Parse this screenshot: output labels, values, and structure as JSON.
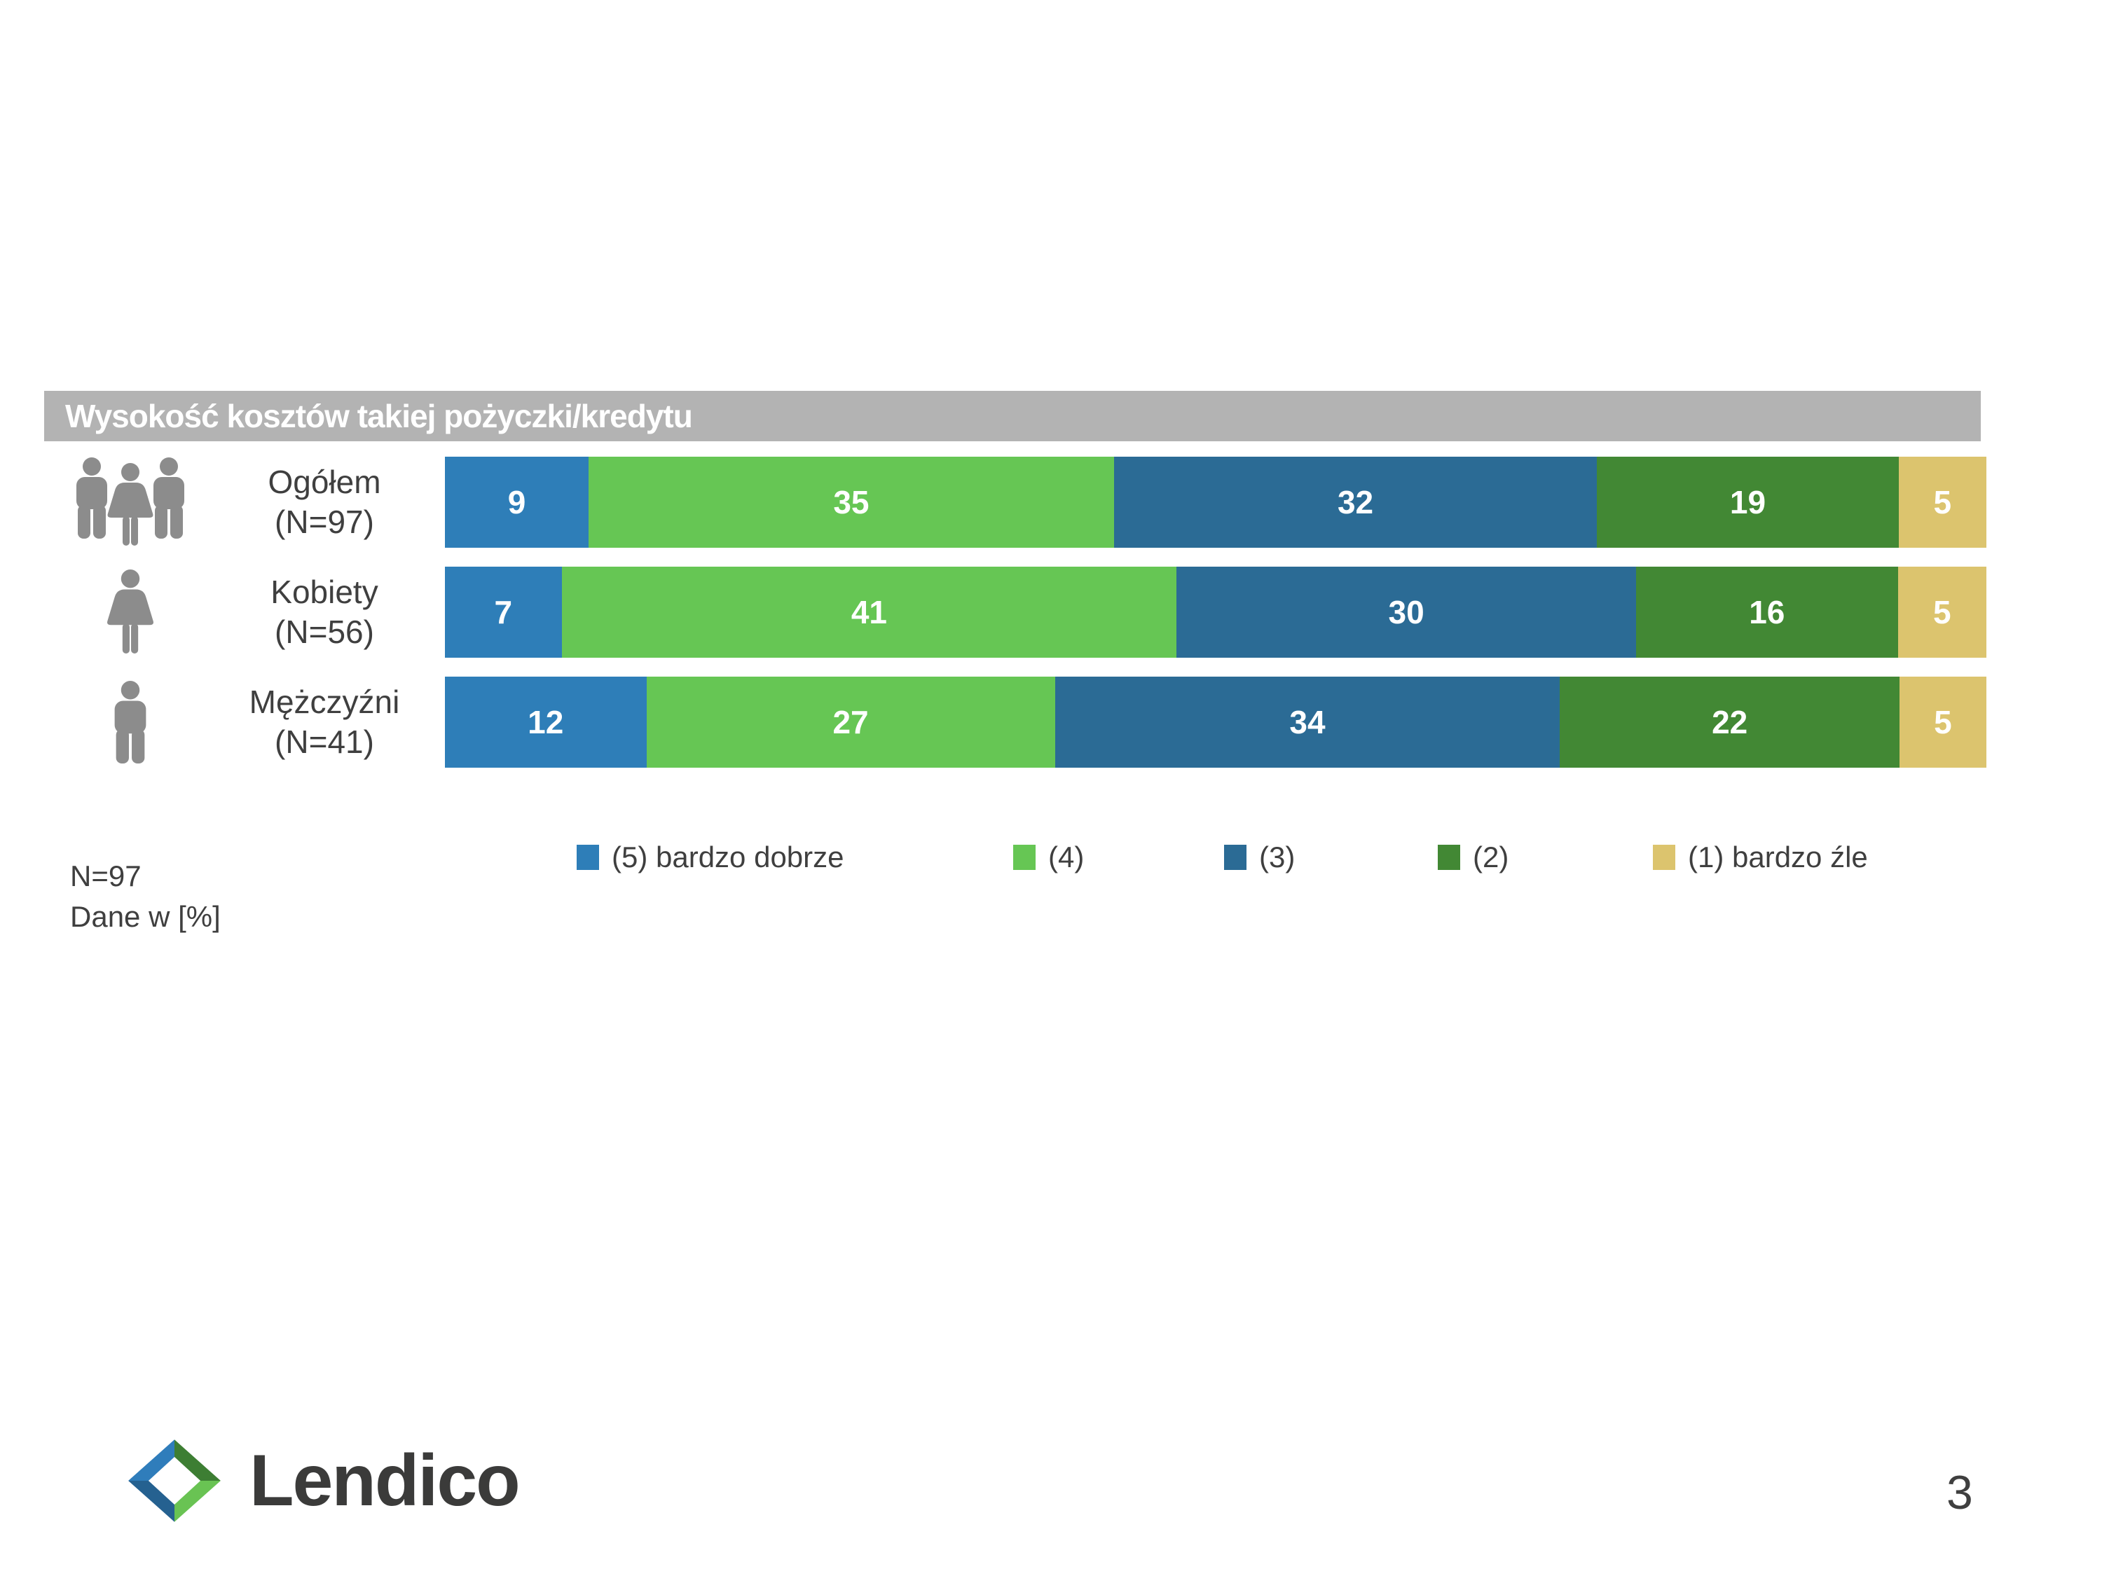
{
  "header": {
    "title": "Wysokość kosztów takiej pożyczki/kredytu",
    "bg_color": "#B3B3B3",
    "text_color": "#FFFFFF"
  },
  "chart_data": {
    "type": "bar",
    "orientation": "horizontal",
    "stacked": true,
    "unit": "%",
    "xlim": [
      0,
      100
    ],
    "grid": false,
    "legend_position": "bottom",
    "title": "Wysokość kosztów takiej pożyczki/kredytu",
    "categories": [
      "Ogółem (N=97)",
      "Kobiety (N=56)",
      "Mężczyźni (N=41)"
    ],
    "rows": [
      {
        "label": "Ogółem",
        "sublabel": "(N=97)",
        "icon": "group-people-icon"
      },
      {
        "label": "Kobiety",
        "sublabel": "(N=56)",
        "icon": "woman-icon"
      },
      {
        "label": "Mężczyźni",
        "sublabel": "(N=41)",
        "icon": "man-icon"
      }
    ],
    "series": [
      {
        "name": "(5) bardzo dobrze",
        "color": "#2E7EB8",
        "values": [
          9,
          7,
          12
        ]
      },
      {
        "name": "(4)",
        "color": "#66C654",
        "values": [
          35,
          41,
          27
        ]
      },
      {
        "name": "(3)",
        "color": "#2B6B95",
        "values": [
          32,
          30,
          34
        ]
      },
      {
        "name": "(2)",
        "color": "#428834",
        "values": [
          19,
          16,
          22
        ]
      },
      {
        "name": "(1) bardzo źle",
        "color": "#DCC46E",
        "values": [
          5,
          5,
          5
        ]
      }
    ]
  },
  "notes": {
    "line1": "N=97",
    "line2": "Dane w [%]"
  },
  "footer": {
    "logo_text": "Lendico",
    "page_number": "3"
  },
  "icon_color": "#8C8C8C",
  "logo_colors": {
    "top_left": "#2F7DBB",
    "top_right": "#3D7E33",
    "bottom_right": "#69C353",
    "bottom_left": "#256190"
  }
}
